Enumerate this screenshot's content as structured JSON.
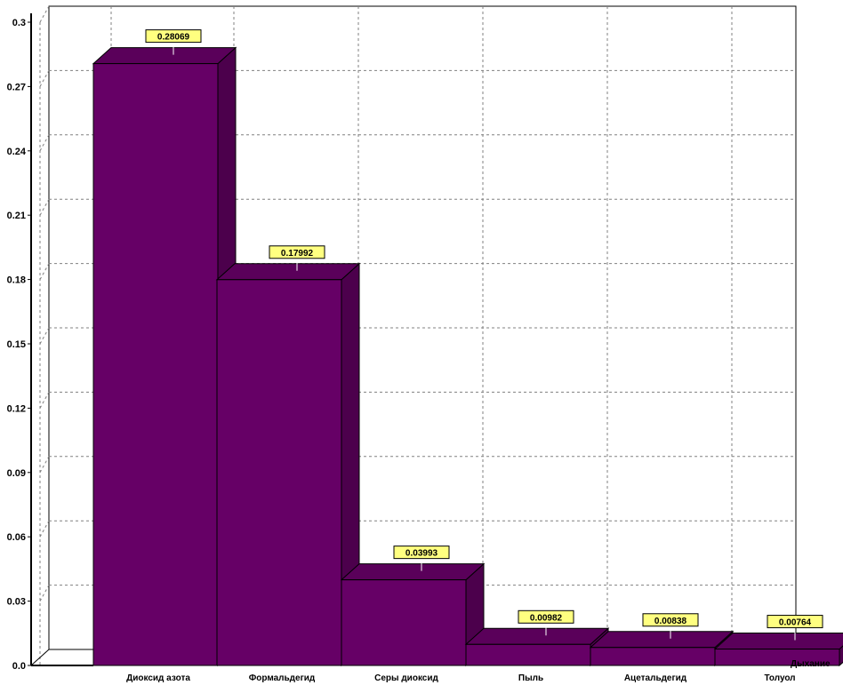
{
  "chart_data": {
    "type": "bar",
    "categories": [
      "Диоксид азота",
      "Формальдегид",
      "Серы диоксид",
      "Пыль",
      "Ацетальдегид",
      "Толуол"
    ],
    "values": [
      0.28069,
      0.17992,
      0.03993,
      0.00982,
      0.00838,
      0.00764
    ],
    "value_labels": [
      "0.28069",
      "0.17992",
      "0.03993",
      "0.00982",
      "0.00838",
      "0.00764"
    ],
    "yticks": [
      "0.0",
      "0.03",
      "0.06",
      "0.09",
      "0.12",
      "0.15",
      "0.18",
      "0.21",
      "0.24",
      "0.27",
      "0.3"
    ],
    "ylim": [
      0,
      0.3
    ],
    "depth_label": "Дыхание",
    "grid": true,
    "style": "3d",
    "colors": {
      "bar_front": "#660066",
      "bar_top": "#5a005a",
      "bar_side": "#4c004c",
      "label_bg": "#ffff80",
      "grid": "#808080"
    }
  }
}
